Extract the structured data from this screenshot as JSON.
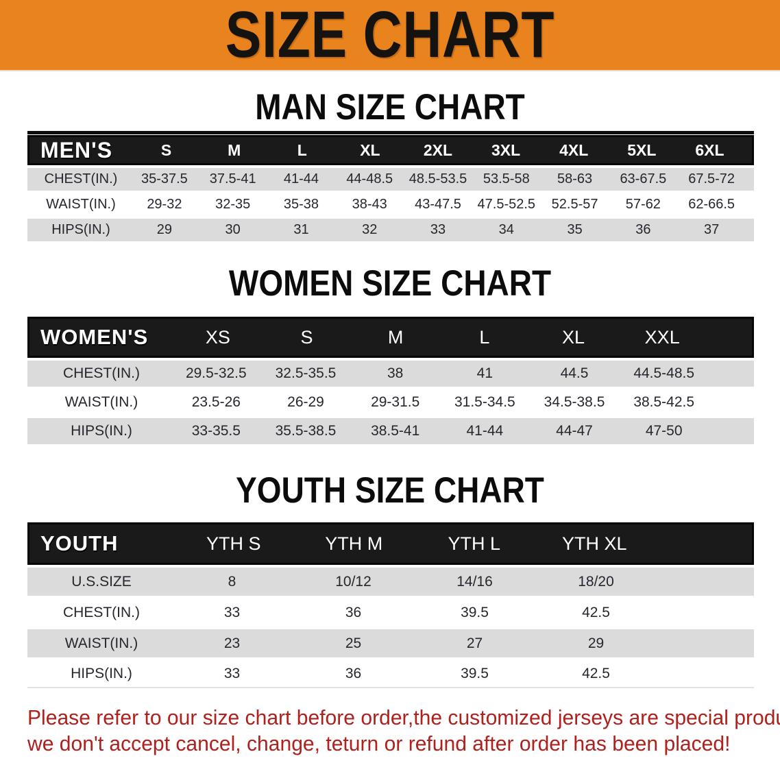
{
  "banner": {
    "title": "SIZE CHART"
  },
  "sections": [
    {
      "heading": "MAN SIZE CHART",
      "table": {
        "label": "MEN'S",
        "sizes": [
          "S",
          "M",
          "L",
          "XL",
          "2XL",
          "3XL",
          "4XL",
          "5XL",
          "6XL"
        ],
        "rows": [
          {
            "label": "CHEST(IN.)",
            "values": [
              "35-37.5",
              "37.5-41",
              "41-44",
              "44-48.5",
              "48.5-53.5",
              "53.5-58",
              "58-63",
              "63-67.5",
              "67.5-72"
            ]
          },
          {
            "label": "WAIST(IN.)",
            "values": [
              "29-32",
              "32-35",
              "35-38",
              "38-43",
              "43-47.5",
              "47.5-52.5",
              "52.5-57",
              "57-62",
              "62-66.5"
            ]
          },
          {
            "label": "HIPS(IN.)",
            "values": [
              "29",
              "30",
              "31",
              "32",
              "33",
              "34",
              "35",
              "36",
              "37"
            ]
          }
        ]
      }
    },
    {
      "heading": "WOMEN SIZE CHART",
      "table": {
        "label": "WOMEN'S",
        "sizes": [
          "XS",
          "S",
          "M",
          "L",
          "XL",
          "XXL"
        ],
        "rows": [
          {
            "label": "CHEST(IN.)",
            "values": [
              "29.5-32.5",
              "32.5-35.5",
              "38",
              "41",
              "44.5",
              "44.5-48.5"
            ]
          },
          {
            "label": "WAIST(IN.)",
            "values": [
              "23.5-26",
              "26-29",
              "29-31.5",
              "31.5-34.5",
              "34.5-38.5",
              "38.5-42.5"
            ]
          },
          {
            "label": "HIPS(IN.)",
            "values": [
              "33-35.5",
              "35.5-38.5",
              "38.5-41",
              "41-44",
              "44-47",
              "47-50"
            ]
          }
        ]
      }
    },
    {
      "heading": "YOUTH SIZE CHART",
      "table": {
        "label": "YOUTH",
        "sizes": [
          "YTH S",
          "YTH M",
          "YTH L",
          "YTH XL"
        ],
        "rows": [
          {
            "label": "U.S.SIZE",
            "values": [
              "8",
              "10/12",
              "14/16",
              "18/20"
            ]
          },
          {
            "label": "CHEST(IN.)",
            "values": [
              "33",
              "36",
              "39.5",
              "42.5"
            ]
          },
          {
            "label": "WAIST(IN.)",
            "values": [
              "23",
              "25",
              "27",
              "29"
            ]
          },
          {
            "label": "HIPS(IN.)",
            "values": [
              "33",
              "36",
              "39.5",
              "42.5"
            ]
          }
        ]
      }
    }
  ],
  "footer": {
    "line1": "Please refer to our size chart before order,the customized jerseys are special products,",
    "line2": "we don't accept cancel, change, teturn or refund after order has been placed!"
  },
  "colors": {
    "banner_orange": "#E8831E",
    "header_black": "#1a1a1a",
    "row_gray": "#DBDBDB",
    "note_red": "#B0211E"
  }
}
